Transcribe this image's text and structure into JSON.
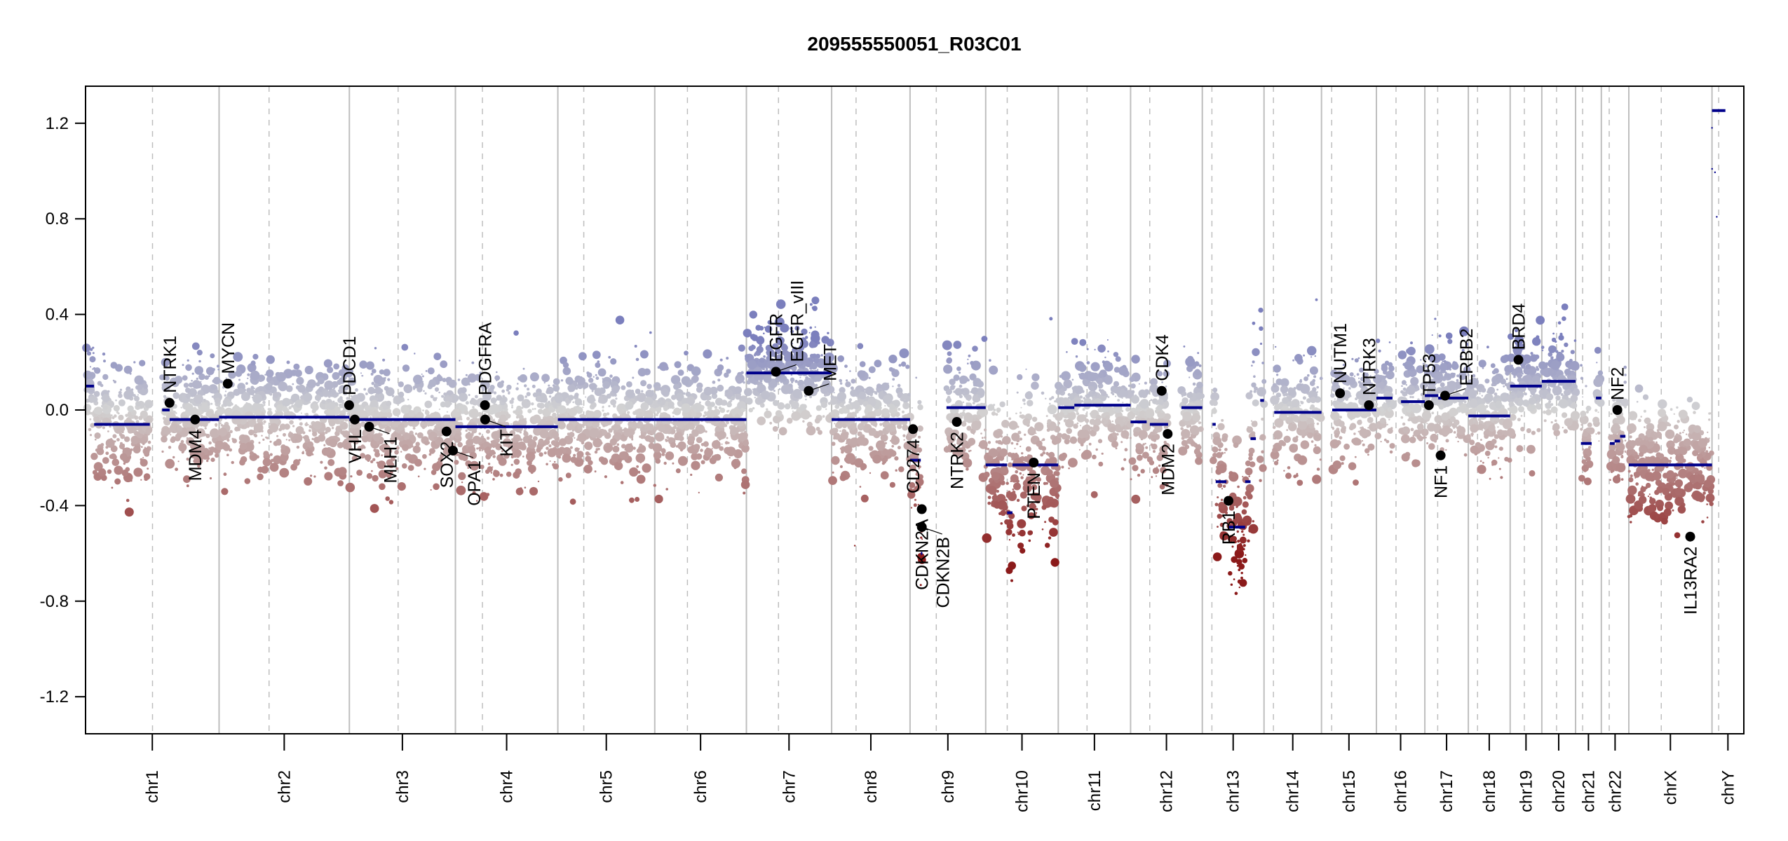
{
  "chart_data": {
    "type": "scatter",
    "title": "209555550051_R03C01",
    "xlabel": "",
    "ylabel": "",
    "ylim": [
      -1.355,
      1.355
    ],
    "yticks": [
      -1.2,
      -0.8,
      -0.4,
      0.0,
      0.4,
      0.8,
      1.2
    ],
    "ytick_labels": [
      "-1.2",
      "-0.8",
      "-0.4",
      "0.0",
      "0.4",
      "0.8",
      "1.2"
    ],
    "grid": false,
    "colors": {
      "gain": "#7b7fbd",
      "neutral": "#d3d3d3",
      "loss": "#8b1a1a",
      "segment": "#00008b",
      "gene_dot": "#000000",
      "chrom_boundary": "#bebebe",
      "centromere": "#bebebe"
    },
    "chromosomes": [
      {
        "name": "chr1",
        "length": 249.3,
        "centromere": 125.0
      },
      {
        "name": "chr2",
        "length": 243.2,
        "centromere": 93.3
      },
      {
        "name": "chr3",
        "length": 198.0,
        "centromere": 91.0
      },
      {
        "name": "chr4",
        "length": 191.2,
        "centromere": 50.4
      },
      {
        "name": "chr5",
        "length": 180.9,
        "centromere": 48.4
      },
      {
        "name": "chr6",
        "length": 171.1,
        "centromere": 61.0
      },
      {
        "name": "chr7",
        "length": 159.1,
        "centromere": 59.9
      },
      {
        "name": "chr8",
        "length": 146.4,
        "centromere": 45.6
      },
      {
        "name": "chr9",
        "length": 141.2,
        "centromere": 49.0
      },
      {
        "name": "chr10",
        "length": 135.5,
        "centromere": 40.2
      },
      {
        "name": "chr11",
        "length": 135.0,
        "centromere": 53.7
      },
      {
        "name": "chr12",
        "length": 133.9,
        "centromere": 35.8
      },
      {
        "name": "chr13",
        "length": 115.2,
        "centromere": 17.9
      },
      {
        "name": "chr14",
        "length": 107.3,
        "centromere": 17.6
      },
      {
        "name": "chr15",
        "length": 102.5,
        "centromere": 19.0
      },
      {
        "name": "chr16",
        "length": 90.4,
        "centromere": 36.6
      },
      {
        "name": "chr17",
        "length": 81.2,
        "centromere": 24.0
      },
      {
        "name": "chr18",
        "length": 78.1,
        "centromere": 17.2
      },
      {
        "name": "chr19",
        "length": 59.1,
        "centromere": 26.5
      },
      {
        "name": "chr20",
        "length": 63.0,
        "centromere": 27.5
      },
      {
        "name": "chr21",
        "length": 48.1,
        "centromere": 13.2
      },
      {
        "name": "chr22",
        "length": 51.3,
        "centromere": 14.7
      },
      {
        "name": "chrX",
        "length": 155.3,
        "centromere": 60.6
      },
      {
        "name": "chrY",
        "length": 59.4,
        "centromere": 12.5
      }
    ],
    "segments": [
      {
        "chr": "chr1",
        "start": 0,
        "end": 16,
        "value": 0.1
      },
      {
        "chr": "chr1",
        "start": 16,
        "end": 120,
        "value": -0.06
      },
      {
        "chr": "chr1",
        "start": 143,
        "end": 157,
        "value": 0.0
      },
      {
        "chr": "chr1",
        "start": 157,
        "end": 249.3,
        "value": -0.04
      },
      {
        "chr": "chr2",
        "start": 0,
        "end": 243.2,
        "value": -0.03
      },
      {
        "chr": "chr3",
        "start": 0,
        "end": 198.0,
        "value": -0.04
      },
      {
        "chr": "chr4",
        "start": 0,
        "end": 191.2,
        "value": -0.07
      },
      {
        "chr": "chr5",
        "start": 0,
        "end": 180.9,
        "value": -0.04
      },
      {
        "chr": "chr6",
        "start": 0,
        "end": 171.1,
        "value": -0.04
      },
      {
        "chr": "chr7",
        "start": 0,
        "end": 159.1,
        "value": 0.155
      },
      {
        "chr": "chr8",
        "start": 0,
        "end": 146.4,
        "value": -0.04
      },
      {
        "chr": "chr9",
        "start": 0,
        "end": 20,
        "value": -0.21
      },
      {
        "chr": "chr9",
        "start": 20,
        "end": 23,
        "value": -0.6
      },
      {
        "chr": "chr9",
        "start": 68,
        "end": 141.2,
        "value": 0.01
      },
      {
        "chr": "chr10",
        "start": 0,
        "end": 40,
        "value": -0.23
      },
      {
        "chr": "chr10",
        "start": 40,
        "end": 50,
        "value": -0.43
      },
      {
        "chr": "chr10",
        "start": 50,
        "end": 135.5,
        "value": -0.23
      },
      {
        "chr": "chr11",
        "start": 0,
        "end": 30,
        "value": 0.01
      },
      {
        "chr": "chr11",
        "start": 30,
        "end": 135.0,
        "value": 0.02
      },
      {
        "chr": "chr12",
        "start": 0,
        "end": 30,
        "value": -0.05
      },
      {
        "chr": "chr12",
        "start": 36,
        "end": 70,
        "value": -0.06
      },
      {
        "chr": "chr12",
        "start": 95,
        "end": 133.9,
        "value": 0.01
      },
      {
        "chr": "chr13",
        "start": 19,
        "end": 25,
        "value": -0.06
      },
      {
        "chr": "chr13",
        "start": 25,
        "end": 45,
        "value": -0.3
      },
      {
        "chr": "chr13",
        "start": 50,
        "end": 80,
        "value": -0.49
      },
      {
        "chr": "chr13",
        "start": 80,
        "end": 90,
        "value": -0.3
      },
      {
        "chr": "chr13",
        "start": 90,
        "end": 100,
        "value": -0.12
      },
      {
        "chr": "chr13",
        "start": 108,
        "end": 115.2,
        "value": 0.04
      },
      {
        "chr": "chr14",
        "start": 19,
        "end": 107.3,
        "value": -0.01
      },
      {
        "chr": "chr15",
        "start": 20,
        "end": 102.5,
        "value": 0.0
      },
      {
        "chr": "chr16",
        "start": 0,
        "end": 30,
        "value": 0.05
      },
      {
        "chr": "chr16",
        "start": 46,
        "end": 90.4,
        "value": 0.035
      },
      {
        "chr": "chr17",
        "start": 0,
        "end": 25,
        "value": 0.06
      },
      {
        "chr": "chr17",
        "start": 25,
        "end": 81.2,
        "value": 0.05
      },
      {
        "chr": "chr18",
        "start": 0,
        "end": 78.1,
        "value": -0.025
      },
      {
        "chr": "chr19",
        "start": 0,
        "end": 59.1,
        "value": 0.1
      },
      {
        "chr": "chr20",
        "start": 0,
        "end": 63.0,
        "value": 0.12
      },
      {
        "chr": "chr21",
        "start": 10,
        "end": 30,
        "value": -0.14
      },
      {
        "chr": "chr21",
        "start": 38,
        "end": 48.1,
        "value": 0.05
      },
      {
        "chr": "chr22",
        "start": 16,
        "end": 25,
        "value": -0.14
      },
      {
        "chr": "chr22",
        "start": 25,
        "end": 35,
        "value": -0.13
      },
      {
        "chr": "chr22",
        "start": 35,
        "end": 45,
        "value": -0.11
      },
      {
        "chr": "chrX",
        "start": 0,
        "end": 155.3,
        "value": -0.23
      },
      {
        "chr": "chrY",
        "start": 0,
        "end": 25,
        "value": 1.253
      }
    ],
    "genes": [
      {
        "name": "NTRK1",
        "chr": "chr1",
        "pos": 156.8,
        "value": 0.03,
        "label_side": "above"
      },
      {
        "name": "MDM4",
        "chr": "chr1",
        "pos": 204.5,
        "value": -0.04,
        "label_side": "below"
      },
      {
        "name": "MYCN",
        "chr": "chr2",
        "pos": 16.1,
        "value": 0.11,
        "label_side": "above"
      },
      {
        "name": "PDCD1",
        "chr": "chr2",
        "pos": 242.8,
        "value": 0.02,
        "label_side": "above"
      },
      {
        "name": "VHL",
        "chr": "chr3",
        "pos": 10.2,
        "value": -0.04,
        "label_side": "below"
      },
      {
        "name": "MLH1",
        "chr": "chr3",
        "pos": 37.0,
        "value": -0.07,
        "label_side": "below"
      },
      {
        "name": "SOX2",
        "chr": "chr3",
        "pos": 181.4,
        "value": -0.09,
        "label_side": "below"
      },
      {
        "name": "OPA1",
        "chr": "chr3",
        "pos": 193.3,
        "value": -0.17,
        "label_side": "below"
      },
      {
        "name": "KIT",
        "chr": "chr4",
        "pos": 55.5,
        "value": -0.04,
        "label_side": "below"
      },
      {
        "name": "PDGFRA",
        "chr": "chr4",
        "pos": 55.1,
        "value": 0.02,
        "label_side": "above"
      },
      {
        "name": "EGFR",
        "chr": "chr7",
        "pos": 55.1,
        "value": 0.16,
        "label_side": "above"
      },
      {
        "name": "EGFR_vIII",
        "chr": "chr7",
        "pos": 55.2,
        "value": 0.16,
        "label_side": "above"
      },
      {
        "name": "MET",
        "chr": "chr7",
        "pos": 116.3,
        "value": 0.08,
        "label_side": "above"
      },
      {
        "name": "CD274",
        "chr": "chr9",
        "pos": 5.5,
        "value": -0.08,
        "label_side": "below"
      },
      {
        "name": "CDKN2A",
        "chr": "chr9",
        "pos": 21.9,
        "value": -0.415,
        "label_side": "below"
      },
      {
        "name": "CDKN2B",
        "chr": "chr9",
        "pos": 22.0,
        "value": -0.49,
        "label_side": "below"
      },
      {
        "name": "NTRK2",
        "chr": "chr9",
        "pos": 87.3,
        "value": -0.05,
        "label_side": "below"
      },
      {
        "name": "PTEN",
        "chr": "chr10",
        "pos": 89.6,
        "value": -0.22,
        "label_side": "below"
      },
      {
        "name": "CDK4",
        "chr": "chr12",
        "pos": 58.1,
        "value": 0.08,
        "label_side": "above"
      },
      {
        "name": "MDM2",
        "chr": "chr12",
        "pos": 69.2,
        "value": -0.1,
        "label_side": "below"
      },
      {
        "name": "RB1",
        "chr": "chr13",
        "pos": 48.9,
        "value": -0.38,
        "label_side": "below"
      },
      {
        "name": "NUTM1",
        "chr": "chr15",
        "pos": 34.6,
        "value": 0.07,
        "label_side": "above"
      },
      {
        "name": "NTRK3",
        "chr": "chr15",
        "pos": 88.5,
        "value": 0.02,
        "label_side": "above"
      },
      {
        "name": "TP53",
        "chr": "chr17",
        "pos": 7.6,
        "value": 0.02,
        "label_side": "above"
      },
      {
        "name": "NF1",
        "chr": "chr17",
        "pos": 29.5,
        "value": -0.19,
        "label_side": "below"
      },
      {
        "name": "ERBB2",
        "chr": "chr17",
        "pos": 37.8,
        "value": 0.06,
        "label_side": "above"
      },
      {
        "name": "BRD4",
        "chr": "chr19",
        "pos": 15.4,
        "value": 0.21,
        "label_side": "above"
      },
      {
        "name": "NF2",
        "chr": "chr22",
        "pos": 29.9,
        "value": 0.0,
        "label_side": "above"
      },
      {
        "name": "IL13RA2",
        "chrom": "chrX",
        "chr": "chrX",
        "pos": 114.6,
        "value": -0.53,
        "label_side": "below"
      }
    ]
  }
}
